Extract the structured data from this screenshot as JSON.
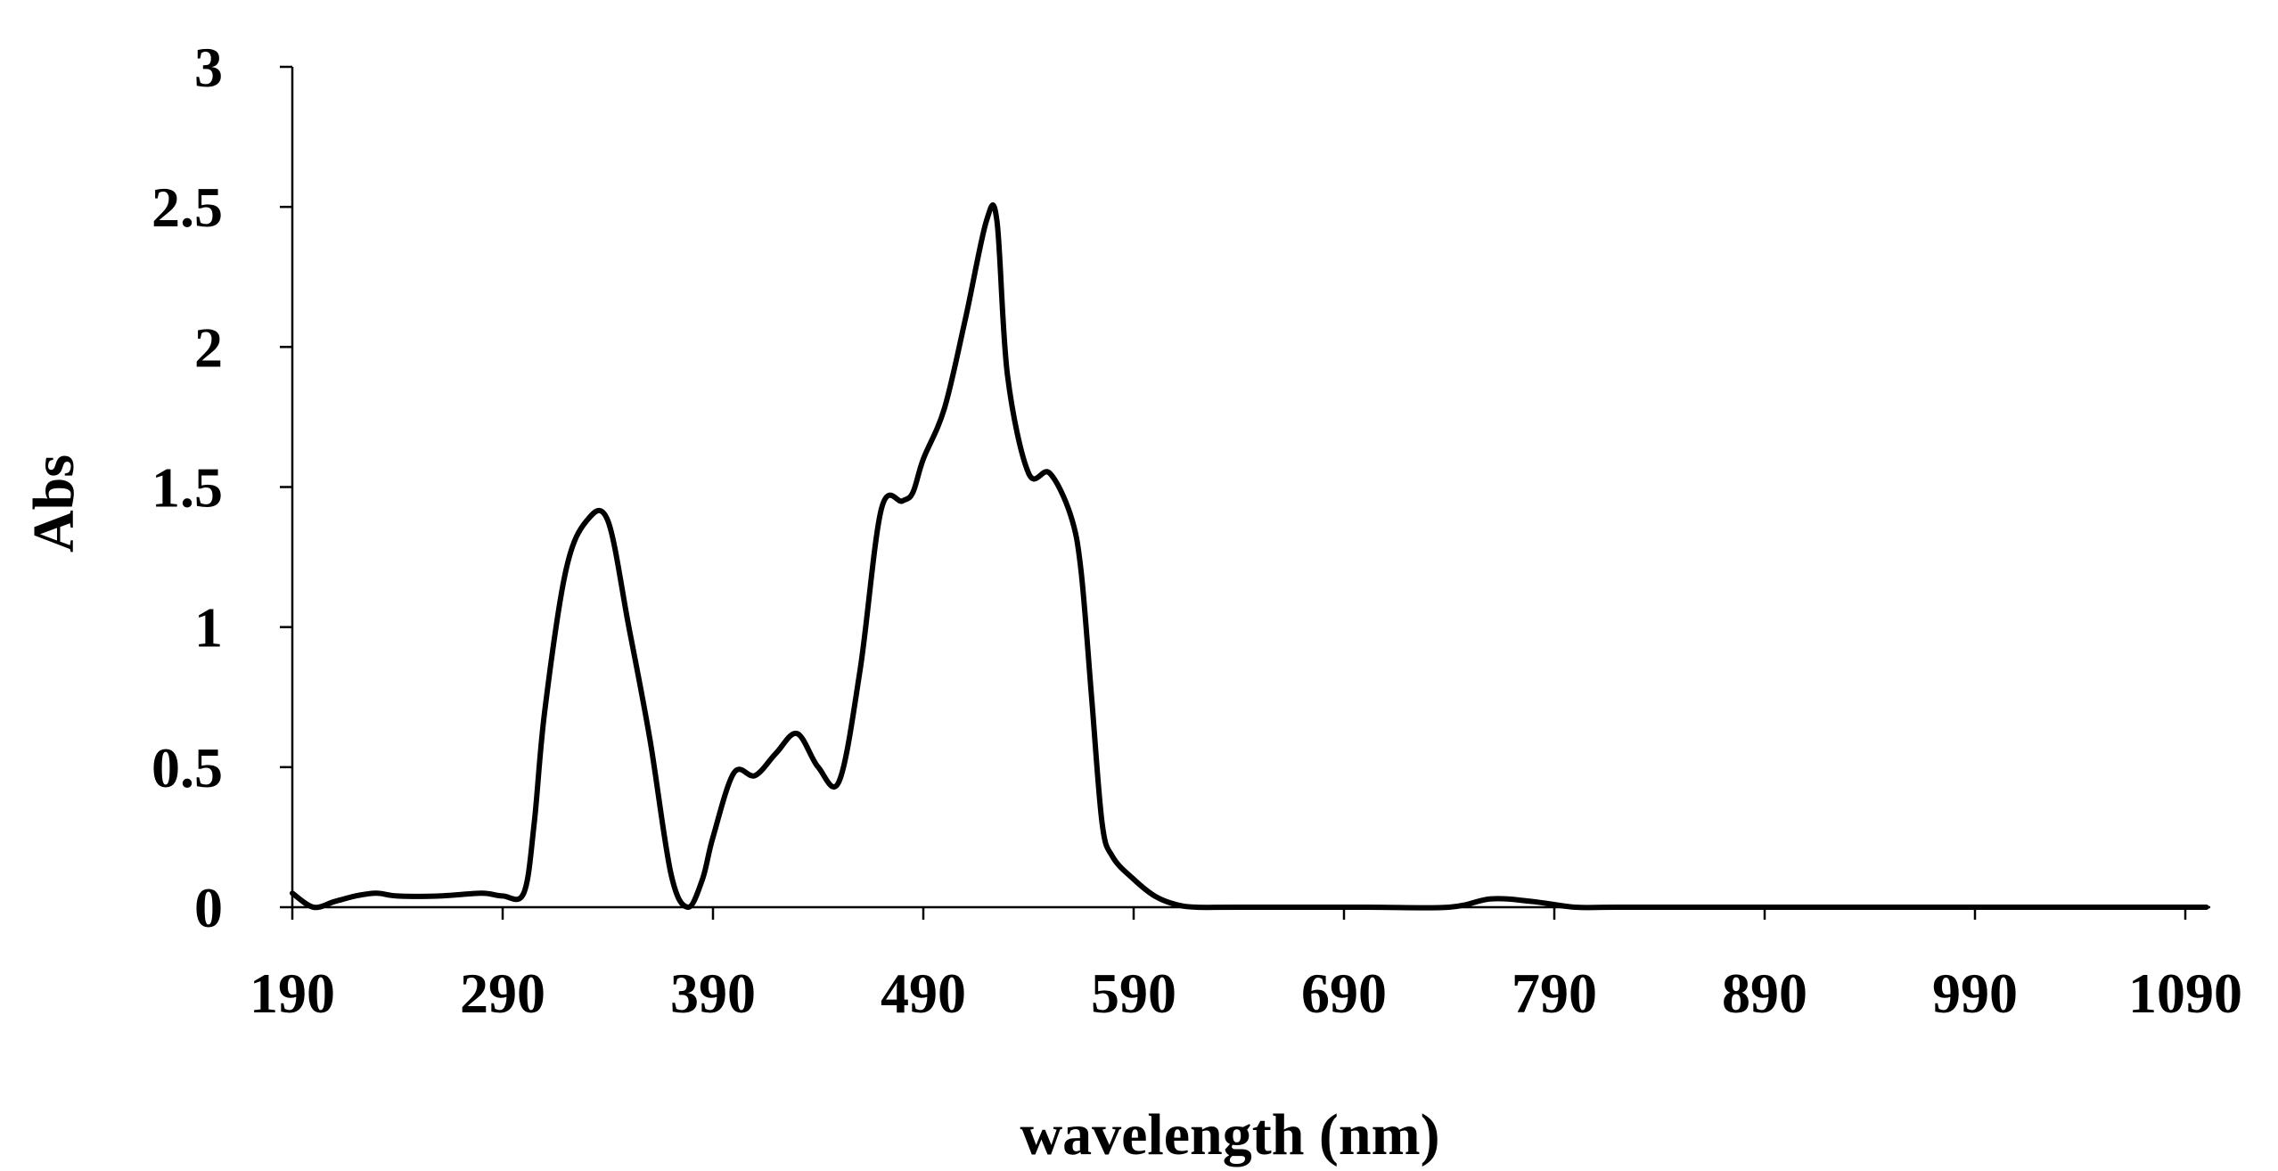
{
  "chart_data": {
    "type": "line",
    "title": "",
    "xlabel": "wavelength (nm)",
    "ylabel": "Abs",
    "xlim": [
      190,
      1100
    ],
    "ylim": [
      0,
      3
    ],
    "x_ticks": [
      190,
      290,
      390,
      490,
      590,
      690,
      790,
      890,
      990,
      1090
    ],
    "y_ticks": [
      0,
      0.5,
      1,
      1.5,
      2,
      2.5,
      3
    ],
    "y_tick_labels": [
      "0",
      "0.5",
      "1",
      "1.5",
      "2",
      "2.5",
      "3"
    ],
    "grid": false,
    "legend": "none",
    "line_color": "#000000",
    "series": [
      {
        "x": [
          190,
          200,
          210,
          220,
          230,
          240,
          260,
          280,
          290,
          300,
          305,
          310,
          320,
          330,
          340,
          350,
          360,
          370,
          378,
          385,
          390,
          400,
          410,
          420,
          430,
          440,
          450,
          460,
          470,
          480,
          485,
          490,
          500,
          510,
          520,
          525,
          530,
          540,
          550,
          560,
          565,
          570,
          575,
          580,
          590,
          600,
          610,
          620,
          640,
          700,
          740,
          760,
          780,
          800,
          820,
          900,
          1100
        ],
        "y": [
          0.05,
          0.0,
          0.02,
          0.04,
          0.05,
          0.04,
          0.04,
          0.05,
          0.04,
          0.05,
          0.3,
          0.7,
          1.2,
          1.38,
          1.38,
          1.0,
          0.6,
          0.12,
          0.0,
          0.1,
          0.25,
          0.48,
          0.47,
          0.55,
          0.62,
          0.5,
          0.45,
          0.85,
          1.42,
          1.45,
          1.48,
          1.6,
          1.78,
          2.1,
          2.45,
          2.45,
          1.9,
          1.55,
          1.55,
          1.4,
          1.2,
          0.75,
          0.3,
          0.18,
          0.1,
          0.04,
          0.01,
          0.0,
          0.0,
          0.0,
          0.0,
          0.03,
          0.02,
          0.0,
          0.0,
          0.0,
          0.0
        ]
      }
    ]
  }
}
